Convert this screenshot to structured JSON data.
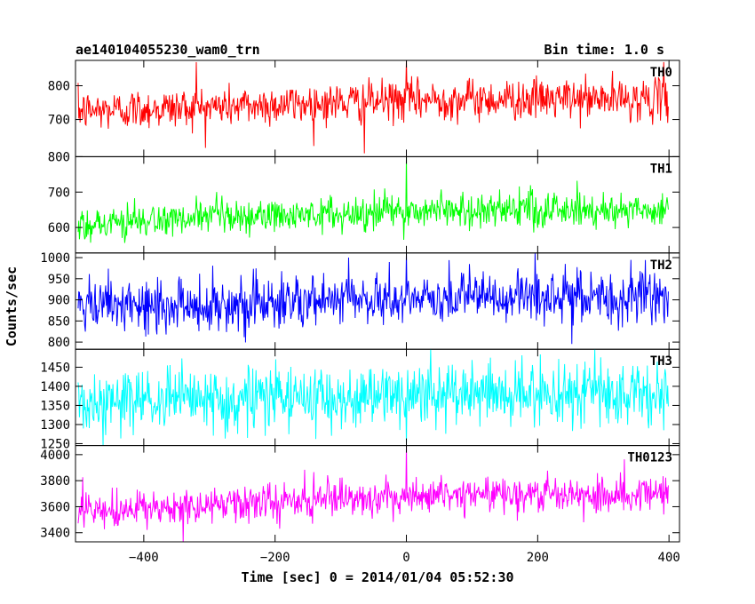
{
  "header": {
    "title": "ae140104055230_wam0_trn",
    "bin_time": "Bin time: 1.0 s"
  },
  "chart_data": {
    "type": "line",
    "xlabel": "Time [sec] 0 = 2014/01/04 05:52:30",
    "ylabel": "Counts/sec",
    "xlim": [
      -504,
      416
    ],
    "xticks": [
      -400,
      -200,
      0,
      200,
      400
    ],
    "x_start": -500,
    "x_end": 399,
    "x_step": 1,
    "panels": [
      {
        "name": "TH0",
        "color": "#ff0000",
        "ylim": [
          590,
          875
        ],
        "yticks": [
          {
            "v": 700,
            "label": "700"
          },
          {
            "v": 800,
            "label": "800"
          }
        ],
        "level_start": 725,
        "level_end": 760,
        "noise": 30,
        "spikes": [
          [
            -320,
            870
          ],
          [
            0,
            880
          ],
          [
            -64,
            600
          ],
          [
            392,
            870
          ]
        ]
      },
      {
        "name": "TH1",
        "color": "#00ff00",
        "ylim": [
          528,
          800
        ],
        "yticks": [
          {
            "v": 600,
            "label": "600"
          },
          {
            "v": 700,
            "label": "700"
          },
          {
            "v": 800,
            "label": "800"
          }
        ],
        "level_start": 610,
        "level_end": 650,
        "noise": 25,
        "spikes": [
          [
            0,
            800
          ],
          [
            -320,
            690
          ]
        ]
      },
      {
        "name": "TH2",
        "color": "#0000ff",
        "ylim": [
          783,
          1011
        ],
        "yticks": [
          {
            "v": 800,
            "label": "800"
          },
          {
            "v": 850,
            "label": "850"
          },
          {
            "v": 900,
            "label": "900"
          },
          {
            "v": 950,
            "label": "950"
          },
          {
            "v": 1000,
            "label": "1000"
          }
        ],
        "level_start": 880,
        "level_end": 905,
        "noise": 32,
        "spikes": [
          [
            0,
            1010
          ]
        ]
      },
      {
        "name": "TH3",
        "color": "#00ffff",
        "ylim": [
          1245,
          1497
        ],
        "yticks": [
          {
            "v": 1250,
            "label": "1250"
          },
          {
            "v": 1300,
            "label": "1300"
          },
          {
            "v": 1350,
            "label": "1350"
          },
          {
            "v": 1400,
            "label": "1400"
          },
          {
            "v": 1450,
            "label": "1450"
          }
        ],
        "level_start": 1355,
        "level_end": 1380,
        "noise": 42,
        "spikes": [
          [
            0,
            1250
          ]
        ]
      },
      {
        "name": "TH0123",
        "color": "#ff00ff",
        "ylim": [
          3330,
          4070
        ],
        "yticks": [
          {
            "v": 3400,
            "label": "3400"
          },
          {
            "v": 3600,
            "label": "3600"
          },
          {
            "v": 3800,
            "label": "3800"
          },
          {
            "v": 4000,
            "label": "4000"
          }
        ],
        "level_start": 3550,
        "level_end": 3700,
        "noise": 70,
        "spikes": [
          [
            0,
            4080
          ],
          [
            -340,
            3330
          ]
        ]
      }
    ]
  }
}
